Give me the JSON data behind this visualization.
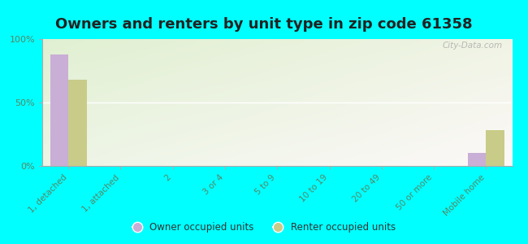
{
  "title": "Owners and renters by unit type in zip code 61358",
  "categories": [
    "1, detached",
    "1, attached",
    "2",
    "3 or 4",
    "5 to 9",
    "10 to 19",
    "20 to 49",
    "50 or more",
    "Mobile home"
  ],
  "owner_values": [
    88,
    0,
    0,
    0,
    0,
    0,
    0,
    0,
    10
  ],
  "renter_values": [
    68,
    0,
    0,
    0,
    0,
    0,
    0,
    0,
    28
  ],
  "owner_color": "#c9aed6",
  "renter_color": "#c8cc88",
  "background_color": "#00ffff",
  "plot_bg_color": "#e8f2d8",
  "ylim": [
    0,
    100
  ],
  "yticks": [
    0,
    50,
    100
  ],
  "ytick_labels": [
    "0%",
    "50%",
    "100%"
  ],
  "title_fontsize": 13,
  "watermark": "City-Data.com",
  "legend_owner": "Owner occupied units",
  "legend_renter": "Renter occupied units"
}
